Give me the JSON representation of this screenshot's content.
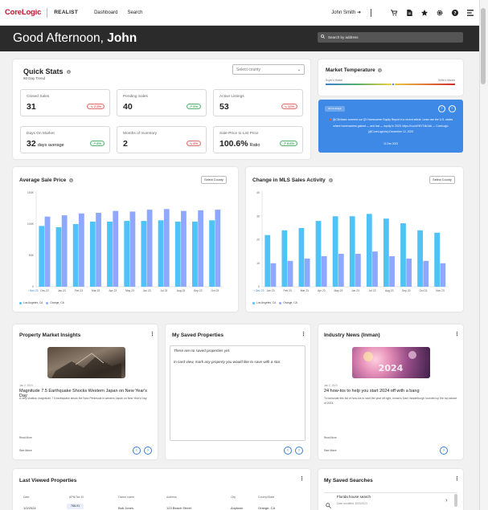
{
  "nav": {
    "logo": "CoreLogic",
    "product": "REALIST",
    "links": [
      "Dashboard",
      "Search"
    ],
    "user": "John Smith",
    "user_arrow": "➜"
  },
  "hero": {
    "greeting": "Good Afternoon,",
    "name": "John",
    "search_placeholder": "Search by address"
  },
  "quick_stats": {
    "title": "Quick Stats",
    "subtitle": "90 Day Trend",
    "county_placeholder": "Select county",
    "stats": [
      {
        "label": "Closed Sales",
        "value": "31",
        "unit": "",
        "change": "2.3%",
        "direction": "down"
      },
      {
        "label": "Pending Sales",
        "value": "40",
        "unit": "",
        "change": "5%",
        "direction": "up"
      },
      {
        "label": "Active Listings",
        "value": "53",
        "unit": "",
        "change": "12%",
        "direction": "down"
      },
      {
        "label": "Days On Market",
        "value": "32",
        "unit": "days average",
        "change": "8%",
        "direction": "up"
      },
      {
        "label": "Months of Inventory",
        "value": "2",
        "unit": "",
        "change": "4%",
        "direction": "down"
      },
      {
        "label": "Sale-Price to List Price",
        "value": "100.6%",
        "unit": "Ratio",
        "change": "8.6%",
        "direction": "up"
      }
    ]
  },
  "market_temperature": {
    "title": "Market Temperature",
    "left_label": "Buyer's Market",
    "right_label": "Seller's Market",
    "level": 0.52
  },
  "news_banner": {
    "tag": "All coverage",
    "text": "📣 @CNNbsec covered our Q3 Homeowner Equity Report in a recent article. Learn are the U.S. states where homeowners gained — and lost — equity in 2023: https://t.co/dYBY7dk1dA — CoreLogic (@CoreLogicInc) December 12, 2023",
    "date": "11 Dec 2023"
  },
  "avg_sale_chart": {
    "title": "Average Sale Price",
    "select_label": "Select County",
    "start_label": "‹ Nov 23",
    "legend": [
      "Los Angeles, CA",
      "Orange, CA"
    ]
  },
  "mls_chart": {
    "title": "Change in MLS Sales Activity",
    "select_label": "Select County",
    "start_label": "‹ Dec 23",
    "legend": [
      "Los Angeles, CA",
      "Orange, CA"
    ]
  },
  "chart_data": [
    {
      "type": "bar",
      "title": "Average Sale Price",
      "categories": [
        "Dec 22",
        "Jan 23",
        "Feb 23",
        "Mar 23",
        "Apr 23",
        "May 23",
        "Jun 23",
        "Jul 23",
        "Aug 23",
        "Sep 23",
        "Oct 23"
      ],
      "yticks": [
        "150K",
        "100K",
        "50K",
        "0"
      ],
      "ylim": [
        0,
        150
      ],
      "series": [
        {
          "name": "Los Angeles, CA",
          "color": "#4fc3f7",
          "values": [
            97,
            95,
            100,
            104,
            104,
            105,
            105,
            106,
            104,
            104,
            106
          ]
        },
        {
          "name": "Orange, CA",
          "color": "#8fa8ff",
          "values": [
            112,
            114,
            117,
            118,
            121,
            120,
            123,
            124,
            121,
            122,
            123
          ]
        }
      ]
    },
    {
      "type": "bar",
      "title": "Change in MLS Sales Activity",
      "categories": [
        "Jan 23",
        "Feb 23",
        "Mar 23",
        "Apr 23",
        "May 23",
        "Jun 23",
        "Jul 23",
        "Aug 23",
        "Sep 23",
        "Oct 23",
        "Nov 23"
      ],
      "yticks": [
        "40",
        "30",
        "20",
        "10",
        "0"
      ],
      "ylim": [
        0,
        40
      ],
      "series": [
        {
          "name": "Los Angeles, CA",
          "color": "#4fc3f7",
          "values": [
            22,
            24,
            25,
            28,
            30,
            30,
            31,
            29,
            27,
            24,
            23
          ]
        },
        {
          "name": "Orange, CA",
          "color": "#8fa8ff",
          "values": [
            10,
            11,
            12,
            13,
            14,
            14,
            15,
            13,
            12,
            11,
            10
          ]
        }
      ]
    }
  ],
  "property_insights": {
    "title": "Property Market Insights",
    "date": "Jan 2, 2024",
    "headline": "Magnitude 7.5 Earthquake Shocks Western Japan on New Year's Day",
    "body": "A very shallow, magnitude 7.5 earthquake struck the Noto Peninsula in western Japan on New Year's Day.",
    "footer": "Read More",
    "see_more": "See More"
  },
  "saved_properties": {
    "title": "My Saved Properties",
    "msg1": "There are no saved properties yet.",
    "msg2": "In card view, mark any property you would like to save with a star."
  },
  "industry_news": {
    "title": "Industry News (Inman)",
    "date": "Jan 2, 2024",
    "headline": "24 how-tos to help you start 2024 off with a bang",
    "body": "To formulate this list of how-tos to start the year off right, Inman's Dani Vanderburgh rounded up the top advice of 2023.",
    "footer": "Read More",
    "see_more": "See More"
  },
  "last_viewed": {
    "title": "Last Viewed Properties",
    "headers": [
      "Date",
      "APN/Tax ID",
      "Owner name",
      "Address",
      "City",
      "County/State"
    ],
    "row": [
      "1/2/2024",
      "788-91",
      "Bob Jones",
      "123 Beach Street",
      "Anytown",
      "Orange, CA"
    ]
  },
  "saved_searches": {
    "title": "My Saved Searches",
    "item_title": "Florida house search",
    "item_sub": "Date modified: 8/23/2023"
  }
}
